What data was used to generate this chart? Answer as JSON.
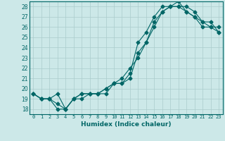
{
  "xlabel": "Humidex (Indice chaleur)",
  "bg_color": "#cce8e8",
  "line_color": "#006666",
  "grid_color": "#aacccc",
  "xlim": [
    -0.5,
    23.5
  ],
  "ylim": [
    17.5,
    28.5
  ],
  "yticks": [
    18,
    19,
    20,
    21,
    22,
    23,
    24,
    25,
    26,
    27,
    28
  ],
  "xticks": [
    0,
    1,
    2,
    3,
    4,
    5,
    6,
    7,
    8,
    9,
    10,
    11,
    12,
    13,
    14,
    15,
    16,
    17,
    18,
    19,
    20,
    21,
    22,
    23
  ],
  "line1": [
    19.5,
    19.0,
    19.0,
    18.5,
    18.0,
    19.0,
    19.5,
    19.5,
    19.5,
    20.0,
    20.5,
    21.0,
    22.0,
    23.0,
    24.5,
    26.0,
    27.5,
    28.0,
    28.0,
    27.5,
    27.0,
    26.0,
    26.0,
    26.0
  ],
  "line2": [
    19.5,
    19.0,
    19.0,
    18.0,
    18.0,
    19.0,
    19.5,
    19.5,
    19.5,
    20.0,
    20.5,
    20.5,
    21.5,
    24.5,
    25.5,
    27.0,
    28.0,
    28.0,
    28.0,
    28.0,
    27.5,
    26.5,
    26.0,
    25.5
  ],
  "line3": [
    19.5,
    19.0,
    19.0,
    19.5,
    18.0,
    19.0,
    19.0,
    19.5,
    19.5,
    19.5,
    20.5,
    20.5,
    21.0,
    23.5,
    24.5,
    26.5,
    27.5,
    28.0,
    28.5,
    27.5,
    27.0,
    26.5,
    26.5,
    25.5
  ],
  "marker": "D",
  "marker_size": 2.5
}
